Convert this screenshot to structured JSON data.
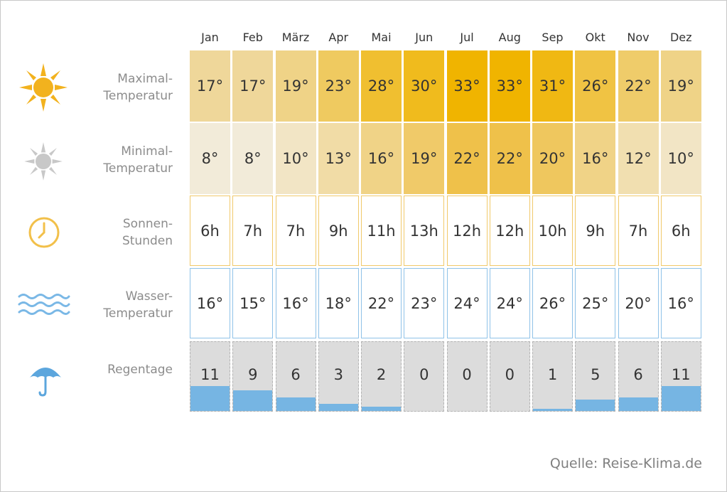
{
  "chart_data": {
    "type": "table",
    "categories": [
      "Jan",
      "Feb",
      "März",
      "Apr",
      "Mai",
      "Jun",
      "Jul",
      "Aug",
      "Sep",
      "Okt",
      "Nov",
      "Dez"
    ],
    "rows": [
      {
        "key": "max",
        "label_line1": "Maximal-",
        "label_line2": "Temperatur",
        "icon": "sun-icon",
        "unit": "°",
        "values": [
          17,
          17,
          19,
          23,
          28,
          30,
          33,
          33,
          31,
          26,
          22,
          19
        ],
        "display": [
          "17°",
          "17°",
          "19°",
          "23°",
          "28°",
          "30°",
          "33°",
          "33°",
          "31°",
          "26°",
          "22°",
          "19°"
        ]
      },
      {
        "key": "min",
        "label_line1": "Minimal-",
        "label_line2": "Temperatur",
        "icon": "grey-sun-icon",
        "unit": "°",
        "values": [
          8,
          8,
          10,
          13,
          16,
          19,
          22,
          22,
          20,
          16,
          12,
          10
        ],
        "display": [
          "8°",
          "8°",
          "10°",
          "13°",
          "16°",
          "19°",
          "22°",
          "22°",
          "20°",
          "16°",
          "12°",
          "10°"
        ]
      },
      {
        "key": "sun",
        "label_line1": "Sonnen-",
        "label_line2": "Stunden",
        "icon": "clock-icon",
        "unit": "h",
        "values": [
          6,
          7,
          7,
          9,
          11,
          13,
          12,
          12,
          10,
          9,
          7,
          6
        ],
        "display": [
          "6h",
          "7h",
          "7h",
          "9h",
          "11h",
          "13h",
          "12h",
          "12h",
          "10h",
          "9h",
          "7h",
          "6h"
        ]
      },
      {
        "key": "water",
        "label_line1": "Wasser-",
        "label_line2": "Temperatur",
        "icon": "waves-icon",
        "unit": "°",
        "values": [
          16,
          15,
          16,
          18,
          22,
          23,
          24,
          24,
          26,
          25,
          20,
          16
        ],
        "display": [
          "16°",
          "15°",
          "16°",
          "18°",
          "22°",
          "23°",
          "24°",
          "24°",
          "26°",
          "25°",
          "20°",
          "16°"
        ]
      },
      {
        "key": "rain",
        "label_line1": "Regentage",
        "label_line2": "",
        "icon": "umbrella-icon",
        "unit": "",
        "values": [
          11,
          9,
          6,
          3,
          2,
          0,
          0,
          0,
          1,
          5,
          6,
          11
        ],
        "display": [
          "11",
          "9",
          "6",
          "3",
          "2",
          "0",
          "0",
          "0",
          "1",
          "5",
          "6",
          "11"
        ],
        "max_days": 31
      }
    ],
    "colors": {
      "max_scale": [
        "#efd79a",
        "#f0b400"
      ],
      "min_scale": [
        "#f2ebd9",
        "#efc14a"
      ],
      "sun_border": "#f1c96a",
      "water_border": "#8fc2e8",
      "rain_bg": "#dcdcdc",
      "rain_fill": "#76b5e3"
    }
  },
  "source": "Quelle: Reise-Klima.de"
}
